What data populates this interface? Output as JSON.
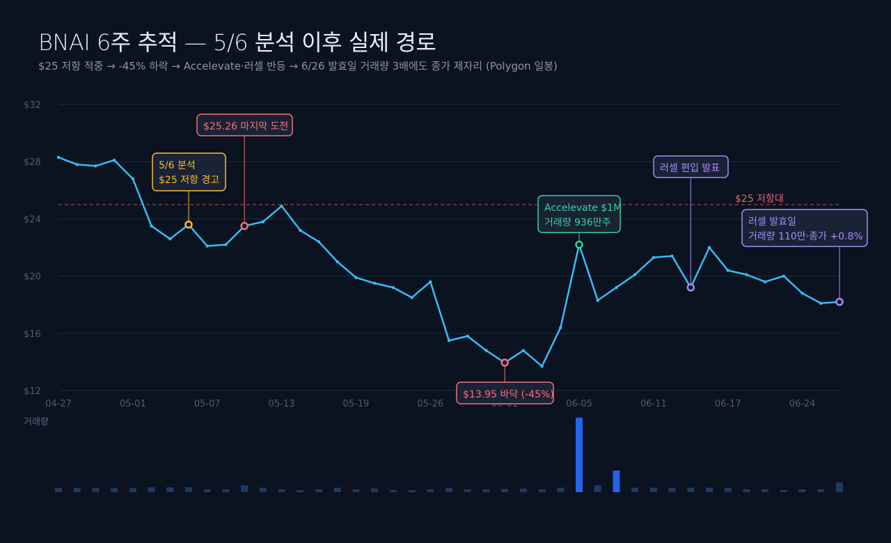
{
  "header": {
    "title": "BNAI 6주 추적 — 5/6 분석 이후 실제 경로",
    "subtitle": "$25 저항 적중 → -45% 하락 → Accelevate·러셀 반등 → 6/26 발효일 거래량 3배에도 종가 제자리 (Polygon 일봉)"
  },
  "colors": {
    "background": "#0b1220",
    "price_line": "#38bdf8",
    "grid": "#16323a",
    "resistance": "#f87171",
    "volume": "#2563eb",
    "volume_dim": "#1d3a66",
    "yellow": "#fbbf24",
    "red": "#f87171",
    "green": "#34d399",
    "purple": "#a78bfa"
  },
  "chart_data": {
    "type": "line",
    "ylim": [
      12,
      32
    ],
    "yticks": [
      12,
      16,
      20,
      24,
      28,
      32
    ],
    "ytick_labels": [
      "$12",
      "$16",
      "$20",
      "$24",
      "$28",
      "$32"
    ],
    "xtick_labels": [
      "04-27",
      "05-01",
      "05-07",
      "05-13",
      "05-19",
      "05-26",
      "06-01",
      "06-05",
      "06-11",
      "06-17",
      "06-24"
    ],
    "xtick_index": [
      0,
      4,
      8,
      12,
      16,
      20,
      24,
      28,
      32,
      36,
      40
    ],
    "grid": true,
    "series": [
      {
        "values": [
          28.3,
          27.8,
          27.7,
          28.1,
          26.8,
          23.5,
          22.6,
          23.6,
          22.1,
          22.2,
          23.5,
          23.8,
          24.9,
          23.2,
          22.4,
          21.0,
          19.9,
          19.5,
          19.2,
          18.5,
          19.6,
          15.5,
          15.8,
          14.8,
          13.95,
          14.8,
          13.7,
          16.4,
          22.2,
          18.3,
          19.2,
          20.1,
          21.3,
          21.4,
          19.2,
          22.0,
          20.4,
          20.1,
          19.6,
          20.0,
          18.8,
          18.1,
          18.2
        ]
      }
    ],
    "volume": {
      "label": "거래량",
      "relative_values": [
        1,
        1,
        1,
        1,
        1,
        1.2,
        1.2,
        1.2,
        0.7,
        0.7,
        1.7,
        1.1,
        0.7,
        0.5,
        0.7,
        1.1,
        0.7,
        0.9,
        0.5,
        0.5,
        0.7,
        1.0,
        0.7,
        0.7,
        0.8,
        0.9,
        0.7,
        1.1,
        18.3,
        1.7,
        5.3,
        1.1,
        1.1,
        1.1,
        1.1,
        1.1,
        1.1,
        0.7,
        0.7,
        0.5,
        0.7,
        0.7,
        2.4
      ],
      "highlight_index": [
        28,
        30
      ]
    },
    "reference_lines": [
      {
        "value": 25,
        "label": "$25 저항대",
        "color": "#f87171",
        "style": "dashed"
      }
    ],
    "annotations": [
      {
        "index": 7,
        "lines": [
          "5/6 분석",
          "$25 저항 경고"
        ],
        "color": "#fbbf24"
      },
      {
        "index": 10,
        "lines": [
          "$25.26 마지막 도전"
        ],
        "color": "#f87171"
      },
      {
        "index": 24,
        "lines": [
          "$13.95 바닥 (-45%)"
        ],
        "color": "#f87171"
      },
      {
        "index": 28,
        "lines": [
          "Accelevate $1M",
          "거래량 936만주"
        ],
        "color": "#34d399"
      },
      {
        "index": 34,
        "lines": [
          "러셀 편입 발표"
        ],
        "color": "#a78bfa"
      },
      {
        "index": 42,
        "lines": [
          "러셀 발효일",
          "거래량 110만·종가 +0.8%"
        ],
        "color": "#a78bfa"
      }
    ]
  }
}
